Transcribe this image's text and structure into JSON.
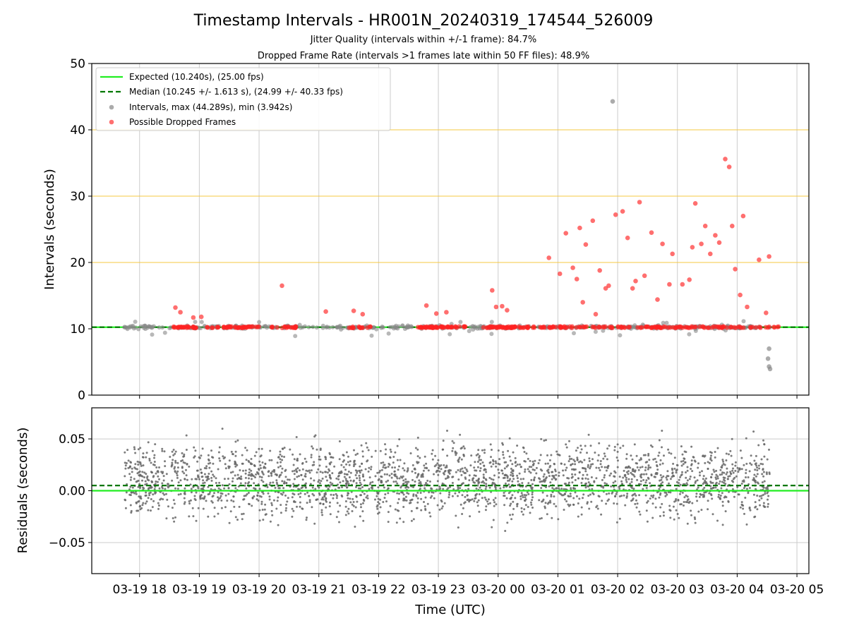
{
  "chart_data": [
    {
      "type": "scatter",
      "panel": "top",
      "title": "Timestamp Intervals - HR001N_20240319_174544_526009",
      "subtitles": [
        "Jitter Quality (intervals within +/-1 frame): 84.7%",
        "Dropped Frame Rate (intervals >1 frames late within 50 FF files): 48.9%"
      ],
      "xlabel": "",
      "ylabel": "Intervals (seconds)",
      "ylim": [
        0,
        50
      ],
      "yticks": [
        0,
        10,
        20,
        30,
        40,
        50
      ],
      "xlim": [
        "2024-03-19T17:12",
        "2024-03-20T05:12"
      ],
      "horizontal_gridlines_y": [
        20,
        30,
        40
      ],
      "legend_position": "upper-left",
      "legend": [
        "Expected (10.240s), (25.00 fps)",
        "Median (10.245 +/- 1.613 s), (24.99 +/- 40.33 fps)",
        "Intervals, max (44.289s), min (3.942s)",
        "Possible Dropped Frames"
      ],
      "expected_interval": 10.24,
      "median_interval": 10.245,
      "colors": {
        "expected": "#22ee22",
        "median": "#007700",
        "intervals": "#888888",
        "dropped": "#ff2222",
        "grid_orange": "#f5c842"
      },
      "series": [
        {
          "name": "Possible Dropped Frames",
          "x": [
            "2024-03-19T18:36",
            "2024-03-19T18:41",
            "2024-03-19T18:54",
            "2024-03-19T19:02",
            "2024-03-19T20:23",
            "2024-03-19T21:07",
            "2024-03-19T21:35",
            "2024-03-19T21:44",
            "2024-03-19T22:48",
            "2024-03-19T22:58",
            "2024-03-19T23:08",
            "2024-03-19T23:54",
            "2024-03-19T23:58",
            "2024-03-20T00:04",
            "2024-03-20T00:09",
            "2024-03-20T00:51",
            "2024-03-20T01:02",
            "2024-03-20T01:08",
            "2024-03-20T01:15",
            "2024-03-20T01:19",
            "2024-03-20T01:22",
            "2024-03-20T01:25",
            "2024-03-20T01:28",
            "2024-03-20T01:35",
            "2024-03-20T01:38",
            "2024-03-20T01:42",
            "2024-03-20T01:48",
            "2024-03-20T01:51",
            "2024-03-20T01:58",
            "2024-03-20T02:05",
            "2024-03-20T02:10",
            "2024-03-20T02:15",
            "2024-03-20T02:18",
            "2024-03-20T02:22",
            "2024-03-20T02:27",
            "2024-03-20T02:34",
            "2024-03-20T02:40",
            "2024-03-20T02:45",
            "2024-03-20T02:52",
            "2024-03-20T02:55",
            "2024-03-20T03:05",
            "2024-03-20T03:12",
            "2024-03-20T03:15",
            "2024-03-20T03:18",
            "2024-03-20T03:24",
            "2024-03-20T03:28",
            "2024-03-20T03:33",
            "2024-03-20T03:38",
            "2024-03-20T03:42",
            "2024-03-20T03:48",
            "2024-03-20T03:52",
            "2024-03-20T03:55",
            "2024-03-20T03:58",
            "2024-03-20T04:03",
            "2024-03-20T04:06",
            "2024-03-20T04:10",
            "2024-03-20T04:22",
            "2024-03-20T04:29",
            "2024-03-20T04:32"
          ],
          "y": [
            13.2,
            12.5,
            11.7,
            11.8,
            16.5,
            12.6,
            12.7,
            12.2,
            13.5,
            12.3,
            12.5,
            15.8,
            13.3,
            13.4,
            12.8,
            20.7,
            18.3,
            24.4,
            19.2,
            17.5,
            25.2,
            14.0,
            22.7,
            26.3,
            12.2,
            18.8,
            16.1,
            16.5,
            27.2,
            27.7,
            23.7,
            16.1,
            17.2,
            29.1,
            18.0,
            24.5,
            14.4,
            22.8,
            16.7,
            21.3,
            16.7,
            17.4,
            22.3,
            28.9,
            22.8,
            25.5,
            21.3,
            24.1,
            23.0,
            35.6,
            34.4,
            25.5,
            19.0,
            15.1,
            27.0,
            13.3,
            20.4,
            12.4,
            20.9
          ]
        },
        {
          "name": "Intervals, max (44.289s), min (3.942s)",
          "x": [
            "2024-03-19T17:45",
            "2024-03-20T01:55",
            "2024-03-20T04:32",
            "2024-03-20T04:31",
            "2024-03-20T04:32",
            "2024-03-20T04:33"
          ],
          "y": [
            10.24,
            44.289,
            7.0,
            5.5,
            4.3,
            3.942
          ]
        }
      ]
    },
    {
      "type": "scatter",
      "panel": "bottom",
      "xlabel": "Time (UTC)",
      "ylabel": "Residuals (seconds)",
      "ylim": [
        -0.08,
        0.08
      ],
      "yticks": [
        "0.05",
        "0.00",
        "−0.05"
      ],
      "xticks": [
        "03-19 18",
        "03-19 19",
        "03-19 20",
        "03-19 21",
        "03-19 22",
        "03-19 23",
        "03-20 00",
        "03-20 01",
        "03-20 02",
        "03-20 03",
        "03-20 04",
        "03-20 05"
      ],
      "expected_residual": 0.0,
      "median_residual": 0.005,
      "residual_spread_note": "points scattered roughly between -0.05 and 0.06 s around 0.00 and 0.02 s"
    }
  ]
}
